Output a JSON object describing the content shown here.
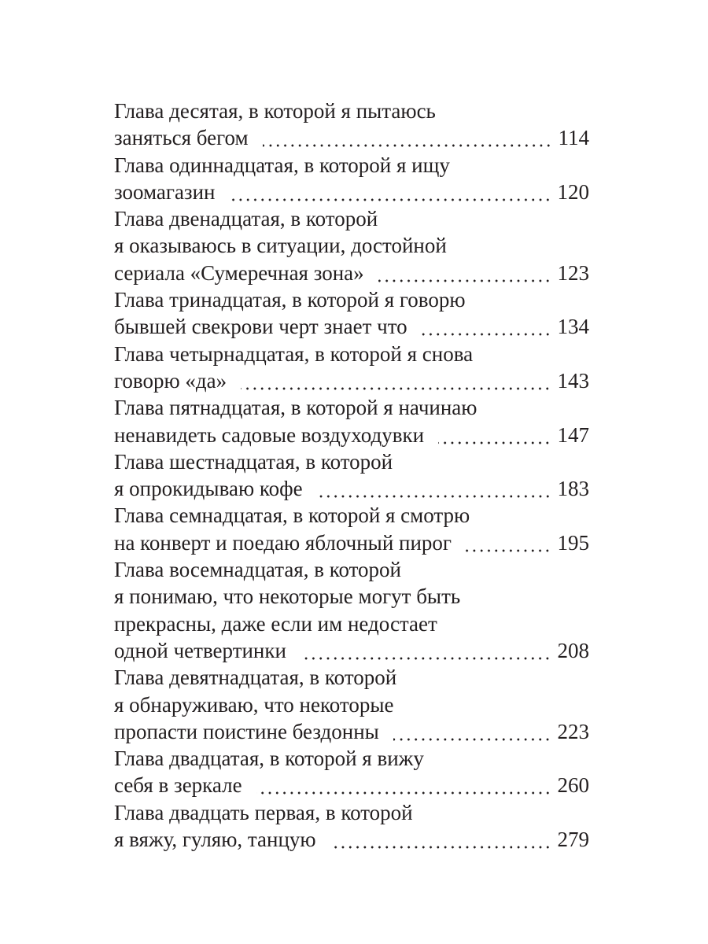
{
  "toc": [
    {
      "lines": [
        "Глава десятая, в которой я пытаюсь",
        "заняться бегом"
      ],
      "page": "114"
    },
    {
      "lines": [
        "Глава одиннадцатая, в которой я ищу",
        "зоомагазин"
      ],
      "page": "120"
    },
    {
      "lines": [
        "Глава двенадцатая, в которой",
        "я оказываюсь в ситуации, достойной",
        "сериала «Сумеречная зона»"
      ],
      "page": "123"
    },
    {
      "lines": [
        "Глава тринадцатая, в которой я говорю",
        "бывшей свекрови черт знает что"
      ],
      "page": "134"
    },
    {
      "lines": [
        "Глава четырнадцатая, в которой я снова",
        "говорю «да»"
      ],
      "page": "143"
    },
    {
      "lines": [
        "Глава пятнадцатая, в которой я начинаю",
        "ненавидеть садовые воздуходувки"
      ],
      "page": "147"
    },
    {
      "lines": [
        "Глава шестнадцатая, в которой",
        "я опрокидываю кофе"
      ],
      "page": "183"
    },
    {
      "lines": [
        "Глава семнадцатая, в которой я смотрю",
        "на конверт и поедаю яблочный пирог"
      ],
      "page": "195"
    },
    {
      "lines": [
        "Глава восемнадцатая, в которой",
        "я понимаю, что некоторые могут быть",
        "прекрасны, даже если им недостает",
        "одной четвертинки"
      ],
      "page": "208"
    },
    {
      "lines": [
        "Глава девятнадцатая, в которой",
        "я обнаруживаю, что некоторые",
        "пропасти поистине бездонны"
      ],
      "page": "223"
    },
    {
      "lines": [
        "Глава двадцатая, в которой я вижу",
        "себя в зеркале"
      ],
      "page": "260"
    },
    {
      "lines": [
        "Глава двадцать первая, в которой",
        "я вяжу, гуляю, танцую"
      ],
      "page": "279"
    }
  ]
}
